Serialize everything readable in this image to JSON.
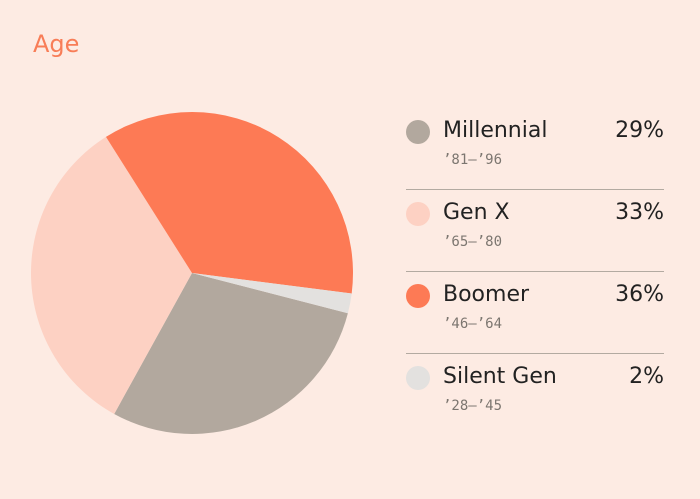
{
  "title": "Age",
  "colors": {
    "background": "#fdebe3",
    "title": "#f87d57",
    "divider": "#b3aaa1"
  },
  "chart_data": {
    "type": "pie",
    "title": "Age",
    "categories": [
      "Millennial",
      "Gen X",
      "Boomer",
      "Silent Gen"
    ],
    "values": [
      29,
      33,
      36,
      2
    ],
    "series": [
      {
        "name": "Millennial",
        "value": 29,
        "label": "29%",
        "years": "’81–’96",
        "color": "#b2a89e"
      },
      {
        "name": "Gen X",
        "value": 33,
        "label": "33%",
        "years": "’65–’80",
        "color": "#fdd1c3"
      },
      {
        "name": "Boomer",
        "value": 36,
        "label": "36%",
        "years": "’46–’64",
        "color": "#fd7a55"
      },
      {
        "name": "Silent Gen",
        "value": 2,
        "label": "2%",
        "years": "’28–’45",
        "color": "#e3e1df"
      }
    ],
    "legend_position": "right"
  }
}
